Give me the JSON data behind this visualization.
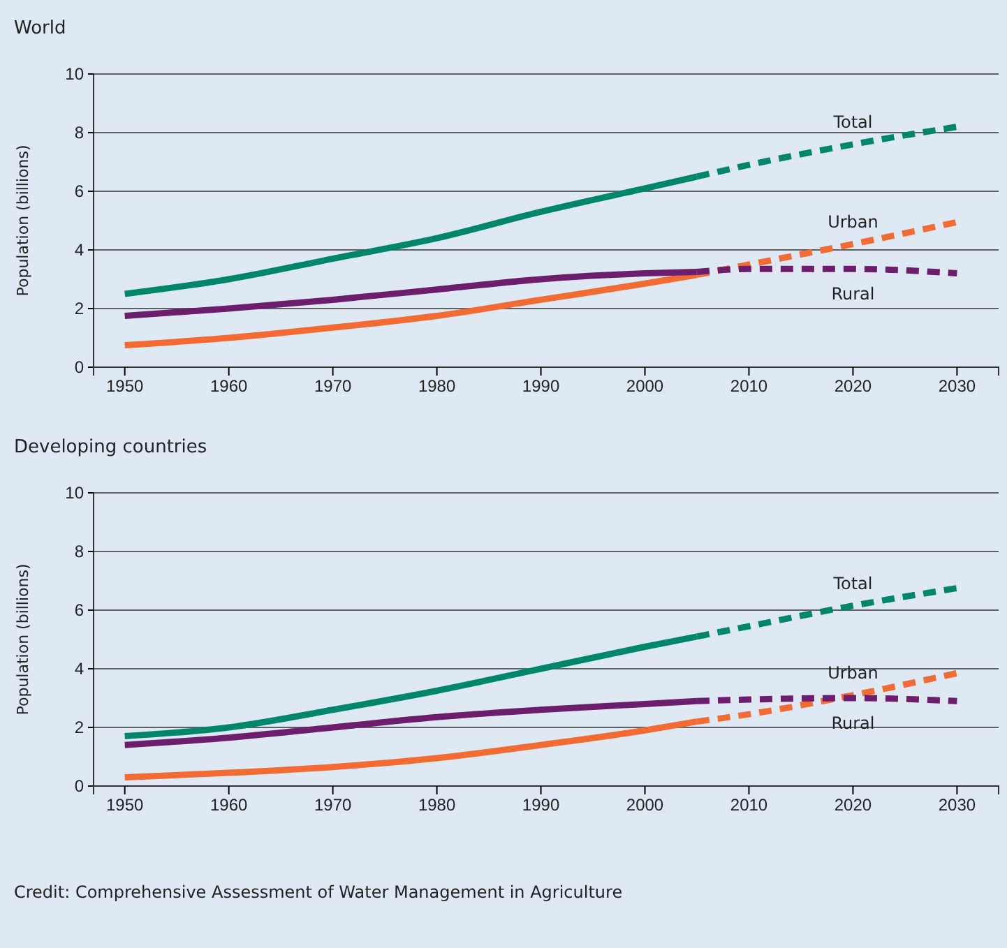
{
  "chart_data": [
    {
      "type": "line",
      "title": "World",
      "ylabel": "Population (billions)",
      "xlim": [
        1947,
        2034
      ],
      "ylim": [
        0,
        10
      ],
      "xticks": [
        1950,
        1960,
        1970,
        1980,
        1990,
        2000,
        2010,
        2020,
        2030
      ],
      "yticks": [
        0,
        2,
        4,
        6,
        8,
        10
      ],
      "grid": "y",
      "legend": false,
      "marker": "none",
      "series": [
        {
          "color": "#00876b",
          "line_style": "solid",
          "x": [
            1950,
            1960,
            1970,
            1980,
            1990,
            2000,
            2005
          ],
          "values": [
            2.5,
            3.0,
            3.7,
            4.4,
            5.3,
            6.1,
            6.5
          ]
        },
        {
          "color": "#f26b32",
          "line_style": "solid",
          "x": [
            1950,
            1960,
            1970,
            1980,
            1990,
            2000,
            2005
          ],
          "values": [
            0.75,
            1.0,
            1.35,
            1.75,
            2.3,
            2.85,
            3.15
          ]
        },
        {
          "color": "#6c1d6e",
          "line_style": "solid",
          "x": [
            1950,
            1960,
            1970,
            1980,
            1990,
            2000,
            2005
          ],
          "values": [
            1.75,
            2.0,
            2.3,
            2.65,
            3.0,
            3.2,
            3.25
          ]
        },
        {
          "name": "Total",
          "color": "#00876b",
          "line_style": "dashed",
          "x": [
            2005,
            2010,
            2020,
            2030
          ],
          "values": [
            6.5,
            6.9,
            7.6,
            8.2
          ]
        },
        {
          "name": "Urban",
          "color": "#f26b32",
          "line_style": "dashed",
          "x": [
            2005,
            2010,
            2020,
            2030
          ],
          "values": [
            3.15,
            3.5,
            4.2,
            4.95
          ]
        },
        {
          "name": "Rural",
          "color": "#6c1d6e",
          "line_style": "dashed",
          "x": [
            2005,
            2010,
            2020,
            2030
          ],
          "values": [
            3.25,
            3.35,
            3.35,
            3.2
          ]
        }
      ]
    },
    {
      "type": "line",
      "title": "Developing countries",
      "ylabel": "Population (billions)",
      "xlim": [
        1947,
        2034
      ],
      "ylim": [
        0,
        10
      ],
      "xticks": [
        1950,
        1960,
        1970,
        1980,
        1990,
        2000,
        2010,
        2020,
        2030
      ],
      "yticks": [
        0,
        2,
        4,
        6,
        8,
        10
      ],
      "grid": "y",
      "legend": false,
      "marker": "none",
      "annotations": [
        "Credit: Comprehensive Assessment of Water Management in Agriculture"
      ],
      "series": [
        {
          "color": "#00876b",
          "line_style": "solid",
          "x": [
            1950,
            1960,
            1970,
            1980,
            1990,
            2000,
            2005
          ],
          "values": [
            1.7,
            2.0,
            2.6,
            3.25,
            4.0,
            4.75,
            5.1
          ]
        },
        {
          "color": "#f26b32",
          "line_style": "solid",
          "x": [
            1950,
            1960,
            1970,
            1980,
            1990,
            2000,
            2005
          ],
          "values": [
            0.3,
            0.45,
            0.65,
            0.95,
            1.4,
            1.9,
            2.2
          ]
        },
        {
          "color": "#6c1d6e",
          "line_style": "solid",
          "x": [
            1950,
            1960,
            1970,
            1980,
            1990,
            2000,
            2005
          ],
          "values": [
            1.4,
            1.65,
            2.0,
            2.35,
            2.6,
            2.8,
            2.9
          ]
        },
        {
          "name": "Total",
          "color": "#00876b",
          "line_style": "dashed",
          "x": [
            2005,
            2010,
            2020,
            2030
          ],
          "values": [
            5.1,
            5.45,
            6.15,
            6.75
          ]
        },
        {
          "name": "Urban",
          "color": "#f26b32",
          "line_style": "dashed",
          "x": [
            2005,
            2010,
            2020,
            2030
          ],
          "values": [
            2.2,
            2.45,
            3.1,
            3.85
          ]
        },
        {
          "name": "Rural",
          "color": "#6c1d6e",
          "line_style": "dashed",
          "x": [
            2005,
            2010,
            2020,
            2030
          ],
          "values": [
            2.9,
            2.95,
            3.0,
            2.9
          ]
        }
      ]
    }
  ]
}
